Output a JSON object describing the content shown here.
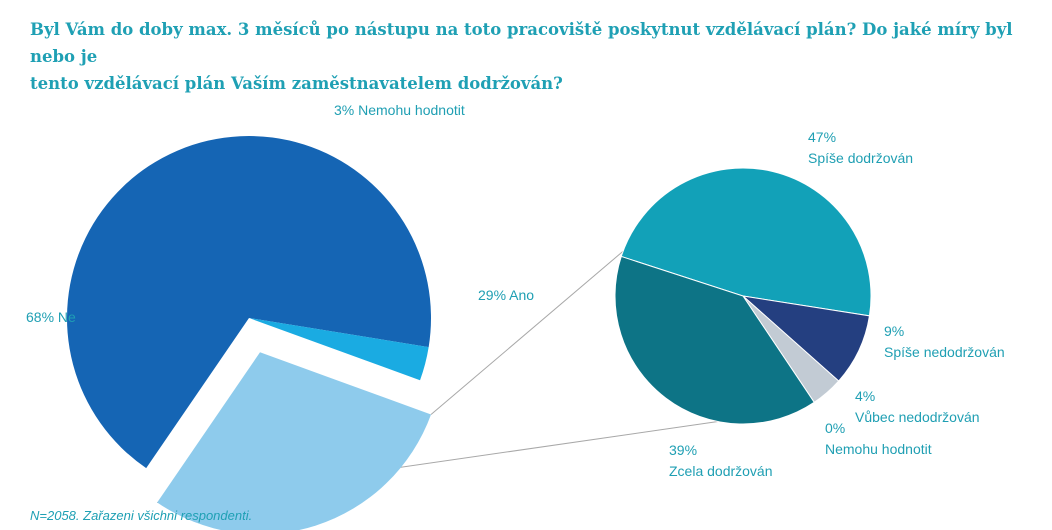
{
  "title_lines": [
    "Byl Vám do doby max. 3 měsíců po nástupu na toto pracoviště poskytnut vzdělávací plán? Do jaké míry byl nebo je",
    "tento vzdělávací plán Vaším zaměstnavatelem dodržován?"
  ],
  "note": "N=2058. Zařazeni všichni respondenti.",
  "colors": {
    "text": "#1f9fb3",
    "connector": "#a8a8a8"
  },
  "chart_data": [
    {
      "type": "pie",
      "slices": [
        {
          "label": "Ne",
          "value": 68,
          "value_text": "68%",
          "display": "68% Ne",
          "color": "#1565b4"
        },
        {
          "label": "Nemohu hodnotit",
          "value": 3,
          "value_text": "3%",
          "display": "3% Nemohu hodnotit",
          "color": "#1aabe2"
        },
        {
          "label": "Ano",
          "value": 29,
          "value_text": "29%",
          "display": "29% Ano",
          "color": "#8ecbec",
          "exploded": true
        }
      ]
    },
    {
      "type": "pie",
      "parent_slice": "Ano",
      "slices": [
        {
          "label": "Spíše dodržován",
          "value": 47,
          "value_text": "47%",
          "color": "#12a1b8"
        },
        {
          "label": "Spíše nedodržován",
          "value": 9,
          "value_text": "9%",
          "color": "#243f80"
        },
        {
          "label": "Vůbec nedodržován",
          "value": 4,
          "value_text": "4%",
          "color": "#c2cbd4"
        },
        {
          "label": "Nemohu hodnotit",
          "value": 0,
          "value_text": "0%",
          "color": "#0b5f6c"
        },
        {
          "label": "Zcela dodržován",
          "value": 39,
          "value_text": "39%",
          "color": "#0d7486"
        }
      ]
    }
  ]
}
